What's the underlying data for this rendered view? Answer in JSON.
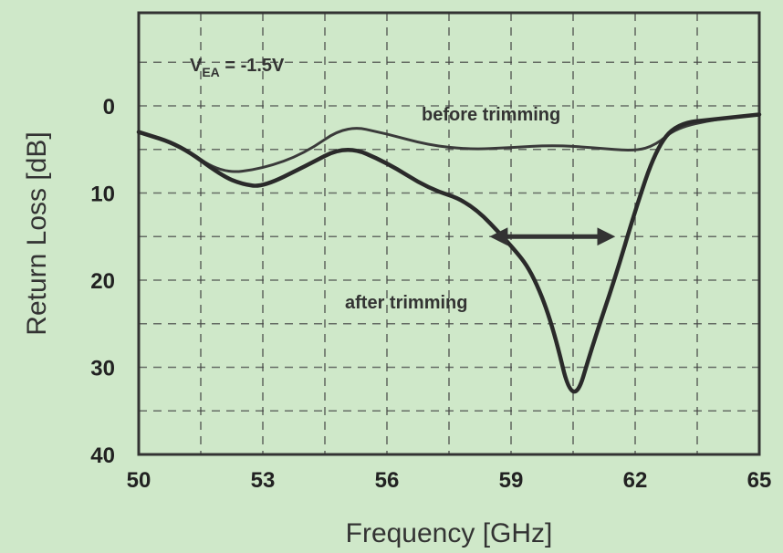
{
  "chart_data": {
    "type": "line",
    "xlabel": "Frequency [GHz]",
    "ylabel": "Return Loss [dB]",
    "xlim": [
      50,
      65
    ],
    "ylim": [
      0,
      40
    ],
    "y_inverted": true,
    "x_ticks": [
      50,
      53,
      56,
      59,
      62,
      65
    ],
    "y_ticks": [
      0,
      10,
      20,
      30,
      40
    ],
    "grid": true,
    "condition_label": {
      "prefix": "V",
      "subscript": "EA",
      "value": " = -1.5V"
    },
    "series": [
      {
        "name": "before trimming",
        "x": [
          50,
          51,
          52,
          53,
          54,
          55,
          56,
          57,
          58,
          59,
          60,
          61,
          62,
          62.5,
          63,
          64,
          65
        ],
        "y": [
          3,
          4.5,
          7.8,
          7.2,
          5.5,
          2.2,
          3.2,
          4.5,
          5,
          4.8,
          4.5,
          4.8,
          5.2,
          4.5,
          2.5,
          1.5,
          1
        ]
      },
      {
        "name": "after trimming",
        "x": [
          50,
          51,
          52,
          52.5,
          53,
          54,
          55,
          56,
          57,
          58,
          59,
          59.5,
          60,
          60.5,
          61,
          61.5,
          62,
          62.5,
          63,
          64,
          65
        ],
        "y": [
          3,
          4.5,
          8,
          9,
          9.3,
          7,
          4.5,
          6.5,
          9.5,
          11,
          16,
          19,
          25,
          35,
          27,
          20,
          12,
          5,
          2,
          1.5,
          1
        ]
      }
    ],
    "annotations": {
      "before_label": "before trimming",
      "after_label": "after trimming",
      "arrow_from": [
        58.7,
        15
      ],
      "arrow_to": [
        61.3,
        15
      ]
    }
  }
}
